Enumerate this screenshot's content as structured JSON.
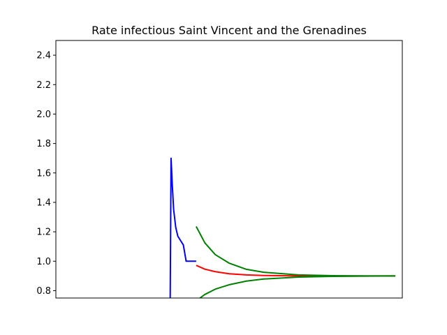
{
  "chart_data": {
    "type": "line",
    "title": "Rate infectious Saint Vincent and the Grenadines",
    "xlabel": "",
    "ylabel": "",
    "x_axis_visible": false,
    "xlim": [
      0,
      100
    ],
    "ylim": [
      0.75,
      2.5
    ],
    "yticks": [
      "0.8",
      "1.0",
      "1.2",
      "1.4",
      "1.6",
      "1.8",
      "2.0",
      "2.2",
      "2.4"
    ],
    "grid": false,
    "legend": "none",
    "series": [
      {
        "color": "#0000ff",
        "points": [
          [
            33.0,
            0.75
          ],
          [
            33.25,
            1.7
          ],
          [
            33.6,
            1.52
          ],
          [
            34.0,
            1.35
          ],
          [
            34.6,
            1.23
          ],
          [
            35.2,
            1.17
          ],
          [
            36.0,
            1.14
          ],
          [
            36.8,
            1.11
          ],
          [
            37.6,
            1.0
          ],
          [
            40.5,
            1.0
          ]
        ]
      },
      {
        "color": "#ff0000",
        "points": [
          [
            40.5,
            0.972
          ],
          [
            43.0,
            0.946
          ],
          [
            46.0,
            0.929
          ],
          [
            50.0,
            0.915
          ],
          [
            55.0,
            0.907
          ],
          [
            60.0,
            0.903
          ],
          [
            70.0,
            0.9
          ],
          [
            80.0,
            0.9
          ],
          [
            90.0,
            0.9
          ],
          [
            98.0,
            0.9
          ]
        ]
      },
      {
        "color": "#008000",
        "points": [
          [
            40.5,
            1.236
          ],
          [
            43.0,
            1.125
          ],
          [
            46.0,
            1.045
          ],
          [
            50.0,
            0.987
          ],
          [
            55.0,
            0.945
          ],
          [
            60.0,
            0.925
          ],
          [
            70.0,
            0.907
          ],
          [
            80.0,
            0.902
          ],
          [
            90.0,
            0.9
          ],
          [
            98.0,
            0.9
          ]
        ]
      },
      {
        "color": "#008000",
        "points": [
          [
            41.6,
            0.75
          ],
          [
            43.0,
            0.774
          ],
          [
            46.0,
            0.81
          ],
          [
            50.0,
            0.84
          ],
          [
            55.0,
            0.865
          ],
          [
            60.0,
            0.879
          ],
          [
            70.0,
            0.892
          ],
          [
            80.0,
            0.897
          ],
          [
            90.0,
            0.899
          ],
          [
            98.0,
            0.9
          ]
        ]
      }
    ]
  }
}
